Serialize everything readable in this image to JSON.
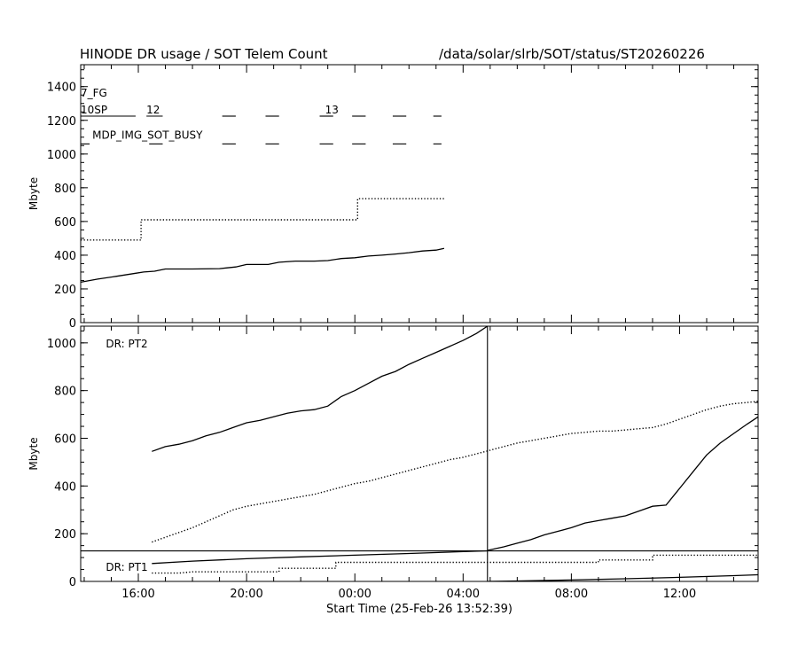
{
  "header": {
    "title": "HINODE DR usage / SOT Telem Count",
    "path": "/data/solar/slrb/SOT/status/ST20260226"
  },
  "chart_data": [
    {
      "type": "line",
      "panel": "top",
      "ylabel": "Mbyte",
      "xlabel": "",
      "ylim": [
        0,
        1530
      ],
      "xlim": [
        13.87,
        38.9
      ],
      "xtick_labels": [],
      "ytick_labels": [
        "0",
        "200",
        "400",
        "600",
        "800",
        "1000",
        "1200",
        "1400"
      ],
      "ytick_values": [
        0,
        200,
        400,
        600,
        800,
        1000,
        1200,
        1400
      ],
      "series": [
        {
          "style": "solid",
          "x": [
            13.87,
            14.5,
            15.2,
            15.9,
            16.2,
            16.6,
            17.0,
            18.0,
            19.0,
            19.6,
            20.0,
            20.8,
            21.2,
            21.8,
            22.5,
            23.0,
            23.5,
            24.0,
            24.5,
            25.0,
            25.5,
            26.0,
            26.5,
            27.0,
            27.3
          ],
          "y": [
            240,
            258,
            275,
            293,
            300,
            305,
            318,
            318,
            320,
            330,
            345,
            345,
            358,
            365,
            365,
            368,
            380,
            385,
            395,
            400,
            407,
            415,
            425,
            430,
            440
          ]
        },
        {
          "style": "dotted",
          "x": [
            13.87,
            16.1,
            16.1,
            24.1,
            24.1,
            27.3
          ],
          "y": [
            490,
            490,
            610,
            610,
            735,
            735
          ]
        }
      ],
      "annotations": [
        {
          "text": "7_FG",
          "x": 13.87,
          "y": 1340
        },
        {
          "text": "10SP",
          "x": 13.87,
          "y": 1240
        },
        {
          "text": "12",
          "x": 16.3,
          "y": 1240
        },
        {
          "text": "13",
          "x": 22.9,
          "y": 1240
        },
        {
          "text": "MDP_IMG_SOT_BUSY",
          "x": 14.3,
          "y": 1090
        }
      ],
      "events": [
        {
          "row": "10SP",
          "y": 1225,
          "segments": [
            [
              13.87,
              15.9
            ],
            [
              16.3,
              16.9
            ],
            [
              19.1,
              19.6
            ],
            [
              20.7,
              21.2
            ],
            [
              22.7,
              23.2
            ],
            [
              23.9,
              24.4
            ],
            [
              25.4,
              25.9
            ],
            [
              26.9,
              27.2
            ]
          ]
        },
        {
          "row": "MDP_IMG_SOT_BUSY",
          "y": 1060,
          "segments": [
            [
              13.87,
              14.2
            ],
            [
              16.4,
              16.9
            ],
            [
              19.1,
              19.6
            ],
            [
              20.7,
              21.2
            ],
            [
              22.7,
              23.2
            ],
            [
              23.9,
              24.4
            ],
            [
              25.4,
              25.9
            ],
            [
              26.9,
              27.2
            ]
          ]
        }
      ]
    },
    {
      "type": "line",
      "panel": "bottom",
      "ylabel": "Mbyte",
      "xlabel": "Start Time (25-Feb-26 13:52:39)",
      "ylim": [
        0,
        1070
      ],
      "xlim": [
        13.87,
        38.9
      ],
      "xtick_labels": [
        "16:00",
        "20:00",
        "00:00",
        "04:00",
        "08:00",
        "12:00"
      ],
      "xtick_values": [
        16,
        20,
        24,
        28,
        32,
        36
      ],
      "ytick_labels": [
        "0",
        "200",
        "400",
        "600",
        "800",
        "1000"
      ],
      "ytick_values": [
        0,
        200,
        400,
        600,
        800,
        1000
      ],
      "annotations": [
        {
          "text": "DR: PT2",
          "x": 14.8,
          "y": 980
        },
        {
          "text": "DR: PT1",
          "x": 14.8,
          "y": 45
        }
      ],
      "reference_lines": {
        "vertical_x": 28.9,
        "horizontal_y": 128
      },
      "series": [
        {
          "name": "DR: PT2",
          "style": "solid",
          "x": [
            16.5,
            17.0,
            17.5,
            18.0,
            18.5,
            19.0,
            19.5,
            20.0,
            20.5,
            21.0,
            21.5,
            22.0,
            22.5,
            23.0,
            23.5,
            24.0,
            24.5,
            25.0,
            25.5,
            26.0,
            26.5,
            27.0,
            27.5,
            28.0,
            28.5,
            28.9
          ],
          "y": [
            545,
            565,
            575,
            590,
            610,
            625,
            645,
            665,
            675,
            690,
            705,
            715,
            720,
            735,
            775,
            800,
            830,
            860,
            880,
            910,
            935,
            960,
            985,
            1010,
            1040,
            1070
          ]
        },
        {
          "style": "dotted",
          "x": [
            16.5,
            17.0,
            17.5,
            18.0,
            18.5,
            19.0,
            19.5,
            20.0,
            20.5,
            21.0,
            21.5,
            22.0,
            22.5,
            23.0,
            23.5,
            24.0,
            24.5,
            25.0,
            25.5,
            26.0,
            26.5,
            27.0,
            27.5,
            28.0,
            28.5,
            29.0,
            29.5,
            30.0,
            30.5,
            31.0,
            31.5,
            32.0,
            32.5,
            33.0,
            33.5,
            34.0,
            34.5,
            35.0,
            35.5,
            36.0,
            36.5,
            37.0,
            37.5,
            38.0,
            38.5,
            38.9
          ],
          "y": [
            165,
            185,
            205,
            225,
            250,
            275,
            300,
            315,
            325,
            335,
            345,
            355,
            365,
            380,
            395,
            410,
            420,
            435,
            450,
            465,
            480,
            495,
            510,
            520,
            535,
            550,
            565,
            580,
            590,
            600,
            610,
            620,
            625,
            630,
            630,
            635,
            640,
            645,
            660,
            680,
            700,
            720,
            735,
            745,
            750,
            755
          ]
        },
        {
          "style": "solid",
          "x": [
            28.9,
            29.5,
            30.0,
            30.5,
            31.0,
            31.5,
            32.0,
            32.5,
            33.0,
            33.5,
            34.0,
            34.5,
            35.0,
            35.5,
            36.0,
            36.5,
            37.0,
            37.5,
            38.0,
            38.5,
            38.9
          ],
          "y": [
            130,
            145,
            160,
            175,
            195,
            210,
            225,
            245,
            255,
            265,
            275,
            295,
            315,
            320,
            390,
            460,
            530,
            580,
            620,
            660,
            690
          ]
        },
        {
          "name": "DR: PT1",
          "style": "solid",
          "x": [
            16.5,
            18.0,
            20.0,
            22.0,
            24.0,
            26.0,
            28.0,
            28.9
          ],
          "y": [
            75,
            85,
            95,
            103,
            110,
            117,
            125,
            128
          ]
        },
        {
          "style": "dotted",
          "x": [
            16.5,
            17.5,
            18.0,
            20.0,
            21.2,
            21.2,
            23.0,
            23.3,
            23.3,
            33.0,
            33.0,
            35.0,
            35.0,
            38.9
          ],
          "y": [
            35,
            35,
            40,
            40,
            40,
            55,
            55,
            55,
            80,
            80,
            90,
            90,
            110,
            110
          ]
        },
        {
          "style": "solid",
          "x": [
            28.9,
            30.0,
            32.0,
            34.0,
            36.0,
            38.0,
            38.9
          ],
          "y": [
            0,
            2,
            6,
            11,
            17,
            24,
            28
          ]
        }
      ]
    }
  ]
}
